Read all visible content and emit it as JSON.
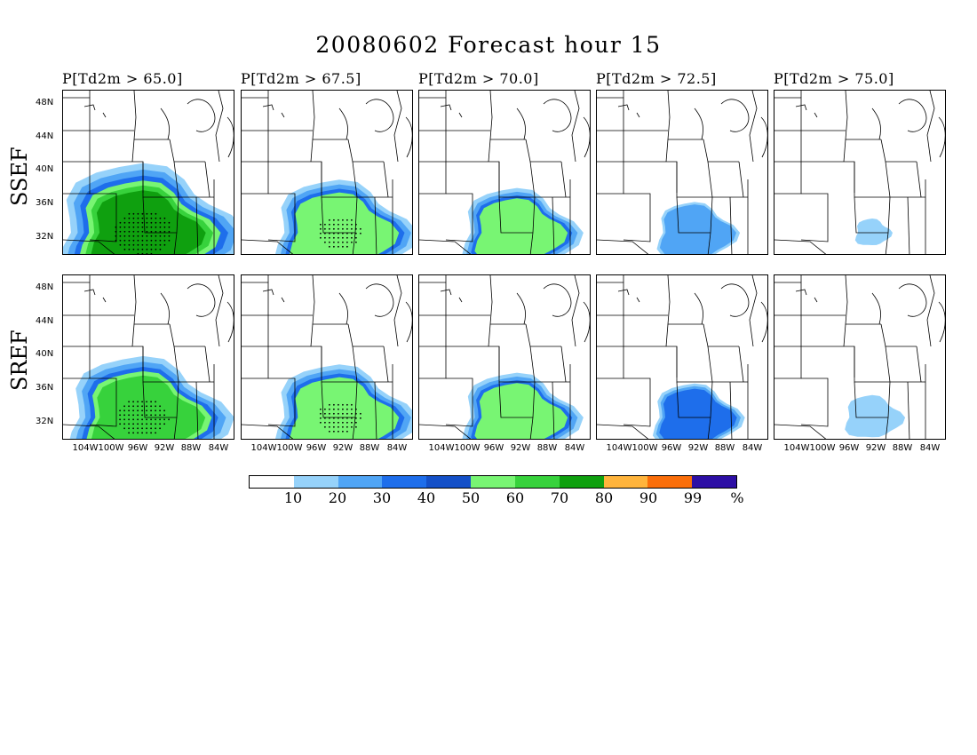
{
  "title": "20080602 Forecast hour 15",
  "row_labels": [
    "SSEF",
    "SREF"
  ],
  "panel_titles": [
    "P[Td2m > 65.0]",
    "P[Td2m > 67.5]",
    "P[Td2m > 70.0]",
    "P[Td2m > 72.5]",
    "P[Td2m > 75.0]"
  ],
  "lat_labels": [
    "48N",
    "44N",
    "40N",
    "36N",
    "32N"
  ],
  "lon_labels": [
    "104W",
    "100W",
    "96W",
    "92W",
    "88W",
    "84W"
  ],
  "colorbar": {
    "colors": [
      "#ffffff",
      "#96d2fa",
      "#50a5f5",
      "#1e6eeb",
      "#1450c8",
      "#78f573",
      "#37d23c",
      "#0fa00f",
      "#ffb43c",
      "#fa6e0a",
      "#2d0fa5"
    ],
    "labels": [
      "10",
      "20",
      "30",
      "40",
      "50",
      "60",
      "70",
      "80",
      "90",
      "99",
      "%"
    ]
  },
  "prob_levels": [
    {
      "ssef": 0.75,
      "sref": 0.65
    },
    {
      "ssef": 0.55,
      "sref": 0.55
    },
    {
      "ssef": 0.45,
      "sref": 0.45
    },
    {
      "ssef": 0.28,
      "sref": 0.32
    },
    {
      "ssef": 0.08,
      "sref": 0.18
    }
  ]
}
